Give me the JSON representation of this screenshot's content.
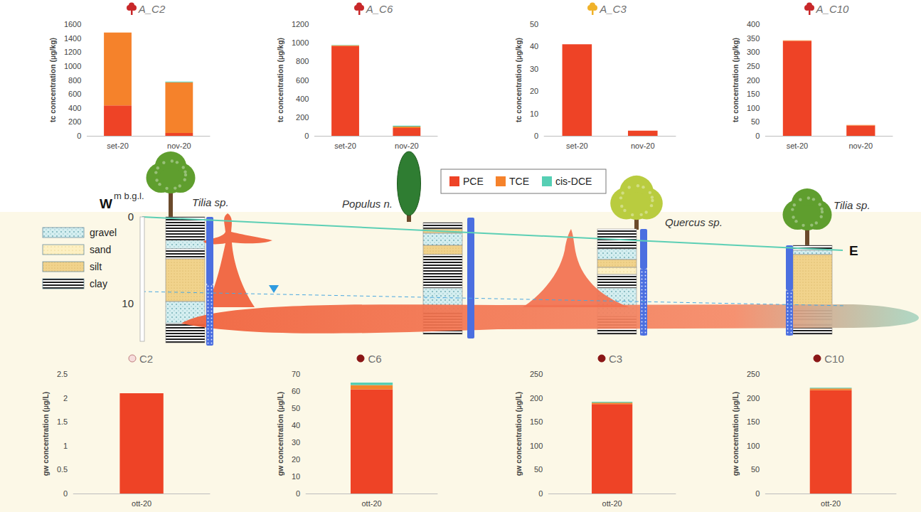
{
  "chart_data": [
    {
      "type": "bar",
      "title": "A_C2",
      "stacked": true,
      "grid": false,
      "categories": [
        "set-20",
        "nov-20"
      ],
      "y_label": "tc concentration (µg/kg)",
      "ylim": [
        0,
        1600
      ],
      "yticks": [
        0,
        200,
        400,
        600,
        800,
        1000,
        1200,
        1400,
        1600
      ],
      "series": [
        {
          "name": "PCE",
          "color": "#ee4326",
          "values": [
            435,
            40
          ]
        },
        {
          "name": "TCE",
          "color": "#f5822b",
          "values": [
            1045,
            728
          ]
        },
        {
          "name": "cis-DCE",
          "color": "#56cfb4",
          "values": [
            0,
            10
          ]
        }
      ]
    },
    {
      "type": "bar",
      "title": "A_C6",
      "stacked": true,
      "grid": false,
      "categories": [
        "set-20",
        "nov-20"
      ],
      "y_label": "tc concentration (µg/kg)",
      "ylim": [
        0,
        1200
      ],
      "yticks": [
        0,
        200,
        400,
        600,
        800,
        1000,
        1200
      ],
      "series": [
        {
          "name": "PCE",
          "color": "#ee4326",
          "values": [
            965,
            85
          ]
        },
        {
          "name": "TCE",
          "color": "#f5822b",
          "values": [
            8,
            15
          ]
        },
        {
          "name": "cis-DCE",
          "color": "#56cfb4",
          "values": [
            4,
            8
          ]
        }
      ]
    },
    {
      "type": "bar",
      "title": "A_C3",
      "stacked": true,
      "grid": false,
      "categories": [
        "set-20",
        "nov-20"
      ],
      "y_label": "tc concentration (µg/kg)",
      "ylim": [
        0,
        50
      ],
      "yticks": [
        0,
        10,
        20,
        30,
        40,
        50
      ],
      "series": [
        {
          "name": "PCE",
          "color": "#ee4326",
          "values": [
            41,
            2.3
          ]
        },
        {
          "name": "TCE",
          "color": "#f5822b",
          "values": [
            0,
            0
          ]
        },
        {
          "name": "cis-DCE",
          "color": "#56cfb4",
          "values": [
            0,
            0
          ]
        }
      ]
    },
    {
      "type": "bar",
      "title": "A_C10",
      "stacked": true,
      "grid": false,
      "categories": [
        "set-20",
        "nov-20"
      ],
      "y_label": "tc concentration (µg/kg)",
      "ylim": [
        0,
        400
      ],
      "yticks": [
        0,
        50,
        100,
        150,
        200,
        250,
        300,
        350,
        400
      ],
      "series": [
        {
          "name": "PCE",
          "color": "#ee4326",
          "values": [
            340,
            37
          ]
        },
        {
          "name": "TCE",
          "color": "#f5822b",
          "values": [
            2,
            2
          ]
        },
        {
          "name": "cis-DCE",
          "color": "#56cfb4",
          "values": [
            0,
            0
          ]
        }
      ]
    },
    {
      "type": "bar",
      "title": "C2",
      "stacked": true,
      "grid": false,
      "categories": [
        "ott-20"
      ],
      "y_label": "gw concentration (µg/L)",
      "ylim": [
        0,
        2.5
      ],
      "yticks": [
        0,
        0.5,
        1,
        1.5,
        2,
        2.5
      ],
      "series": [
        {
          "name": "PCE",
          "color": "#ee4326",
          "values": [
            2.1
          ]
        },
        {
          "name": "TCE",
          "color": "#f5822b",
          "values": [
            0
          ]
        },
        {
          "name": "cis-DCE",
          "color": "#56cfb4",
          "values": [
            0
          ]
        }
      ]
    },
    {
      "type": "bar",
      "title": "C6",
      "stacked": true,
      "grid": false,
      "categories": [
        "ott-20"
      ],
      "y_label": "gw concentration (µg/L)",
      "ylim": [
        0,
        70
      ],
      "yticks": [
        0,
        10,
        20,
        30,
        40,
        50,
        60,
        70
      ],
      "series": [
        {
          "name": "PCE",
          "color": "#ee4326",
          "values": [
            61
          ]
        },
        {
          "name": "TCE",
          "color": "#f5822b",
          "values": [
            2.5
          ]
        },
        {
          "name": "cis-DCE",
          "color": "#56cfb4",
          "values": [
            1.5
          ]
        }
      ]
    },
    {
      "type": "bar",
      "title": "C3",
      "stacked": true,
      "grid": false,
      "categories": [
        "ott-20"
      ],
      "y_label": "gw concentration (µg/L)",
      "ylim": [
        0,
        250
      ],
      "yticks": [
        0,
        50,
        100,
        150,
        200,
        250
      ],
      "series": [
        {
          "name": "PCE",
          "color": "#ee4326",
          "values": [
            187
          ]
        },
        {
          "name": "TCE",
          "color": "#f5822b",
          "values": [
            3
          ]
        },
        {
          "name": "cis-DCE",
          "color": "#56cfb4",
          "values": [
            2
          ]
        }
      ]
    },
    {
      "type": "bar",
      "title": "C10",
      "stacked": true,
      "grid": false,
      "categories": [
        "ott-20"
      ],
      "y_label": "gw concentration (µg/L)",
      "ylim": [
        0,
        250
      ],
      "yticks": [
        0,
        50,
        100,
        150,
        200,
        250
      ],
      "series": [
        {
          "name": "PCE",
          "color": "#ee4326",
          "values": [
            216
          ]
        },
        {
          "name": "TCE",
          "color": "#f5822b",
          "values": [
            4
          ]
        },
        {
          "name": "cis-DCE",
          "color": "#56cfb4",
          "values": [
            1.5
          ]
        }
      ]
    }
  ],
  "cross_section": {
    "west": "W",
    "east": "E",
    "depth_axis_label": "m b.g.l.",
    "depth_ticks": [
      0,
      10
    ],
    "lithology_legend": [
      "gravel",
      "sand",
      "silt",
      "clay"
    ],
    "trees": [
      "Tilia sp.",
      "Populus n.",
      "Quercus sp.",
      "Tilia sp."
    ]
  }
}
